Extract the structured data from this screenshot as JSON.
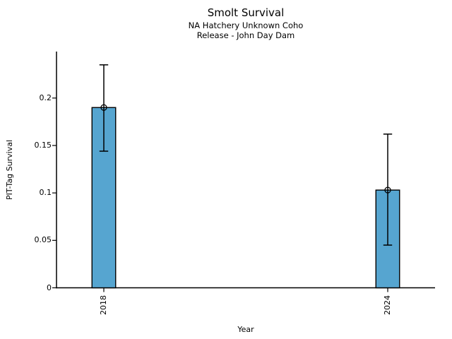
{
  "title": "Smolt Survival",
  "subtitle_line1": "NA Hatchery Unknown Coho",
  "subtitle_line2": "Release - John Day Dam",
  "axes": {
    "xlabel": "Year",
    "ylabel": "PIT-Tag Survival"
  },
  "colors": {
    "bar_fill": "#56a5d0",
    "bar_edge": "#000000",
    "error_bar": "#000000",
    "axis": "#000000",
    "text": "#000000",
    "background": "#ffffff"
  },
  "chart_data": {
    "type": "bar",
    "title": "Smolt Survival",
    "subtitle": [
      "NA Hatchery Unknown Coho",
      "Release - John Day Dam"
    ],
    "xlabel": "Year",
    "ylabel": "PIT-Tag Survival",
    "categories": [
      "2018",
      "2024"
    ],
    "values": [
      0.19,
      0.103
    ],
    "error_low": [
      0.144,
      0.045
    ],
    "error_high": [
      0.235,
      0.162
    ],
    "marker": "open-circle",
    "error_bars": true,
    "yticks": [
      0,
      0.05,
      0.1,
      0.15,
      0.2
    ],
    "ytick_labels": [
      "0",
      "0.05",
      "0.1",
      "0.15",
      "0.2"
    ],
    "ylim": [
      0,
      0.249
    ],
    "xlim_years": [
      2017,
      2025
    ],
    "bar_width_years": 0.5,
    "grid": false,
    "legend": "none",
    "bar_color": "#56a5d0"
  }
}
